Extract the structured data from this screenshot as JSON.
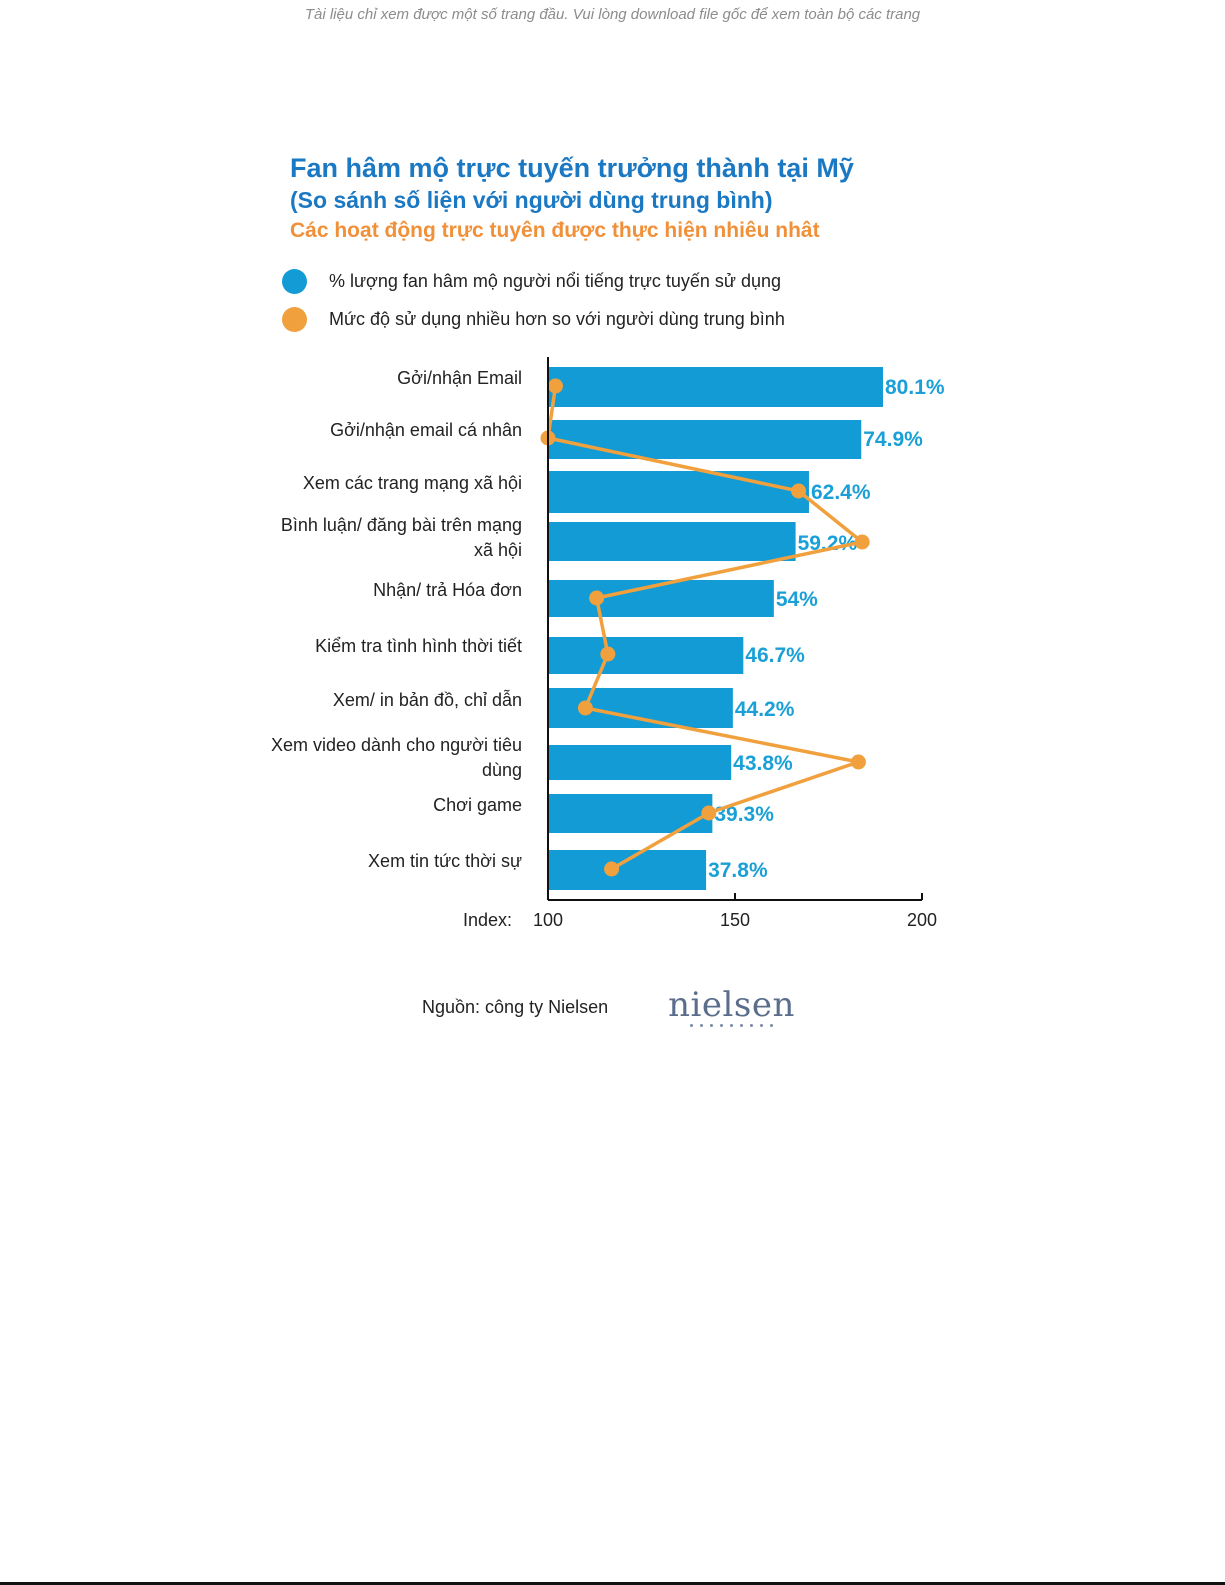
{
  "page": {
    "notice": "Tài liệu chỉ xem được một số trang đầu. Vui lòng download file gốc để xem toàn bộ các trang"
  },
  "colors": {
    "bar": "#139bd5",
    "line": "#f0a03c",
    "title": "#1b78c3",
    "subtitle_orange": "#f0913a",
    "value_label": "#1aa0d6"
  },
  "chart_data": {
    "type": "bar",
    "orientation": "horizontal",
    "title": "Fan hâm mộ trực tuyến trưởng thành tại Mỹ",
    "subtitle": "(So sánh số liện với người dùng trung bình)",
    "subtitle2": "Các hoạt động trực tuyên được thực hiện nhiêu nhât",
    "legend": [
      {
        "name": "% lượng fan hâm mộ người nổi tiếng trực tuyến sử dụng",
        "color": "#139bd5"
      },
      {
        "name": "Mức độ sử dụng nhiều hơn so với người dùng trung bình",
        "color": "#f0a03c"
      }
    ],
    "legend_position": "top-left",
    "categories": [
      [
        "Gởi/nhận Email"
      ],
      [
        "Gởi/nhận email cá nhân"
      ],
      [
        "Xem các trang mạng xã hội"
      ],
      [
        "Bình luận/ đăng bài trên mạng",
        "xã hội"
      ],
      [
        "Nhận/ trả Hóa đơn"
      ],
      [
        "Kiểm tra tình  hình thời tiết"
      ],
      [
        "Xem/ in bản đồ, chỉ dẫn"
      ],
      [
        "Xem video dành cho người tiêu",
        "dùng"
      ],
      [
        "Chơi game"
      ],
      [
        "Xem tin tức thời sự"
      ]
    ],
    "series": [
      {
        "name": "% lượng fan hâm mộ người nổi tiếng trực tuyến sử dụng",
        "values": [
          80.1,
          74.9,
          62.4,
          59.2,
          54,
          46.7,
          44.2,
          43.8,
          39.3,
          37.8
        ],
        "labels": [
          "80.1%",
          "74.9%",
          "62.4%",
          "59.2%",
          "54%",
          "46.7%",
          "44.2%",
          "43.8%",
          "39.3%",
          "37.8%"
        ]
      },
      {
        "name": "Mức độ sử dụng nhiều hơn so với người dùng trung bình",
        "type": "line",
        "index_values": [
          102,
          100,
          167,
          184,
          113,
          116,
          110,
          183,
          143,
          117
        ]
      }
    ],
    "xaxis": {
      "prefix_label": "Index:",
      "ticks": [
        100,
        150,
        200
      ],
      "range": [
        100,
        200
      ]
    },
    "grid": false
  },
  "footer": {
    "source": "Nguồn: công ty Nielsen",
    "logo_text": "nielsen"
  }
}
